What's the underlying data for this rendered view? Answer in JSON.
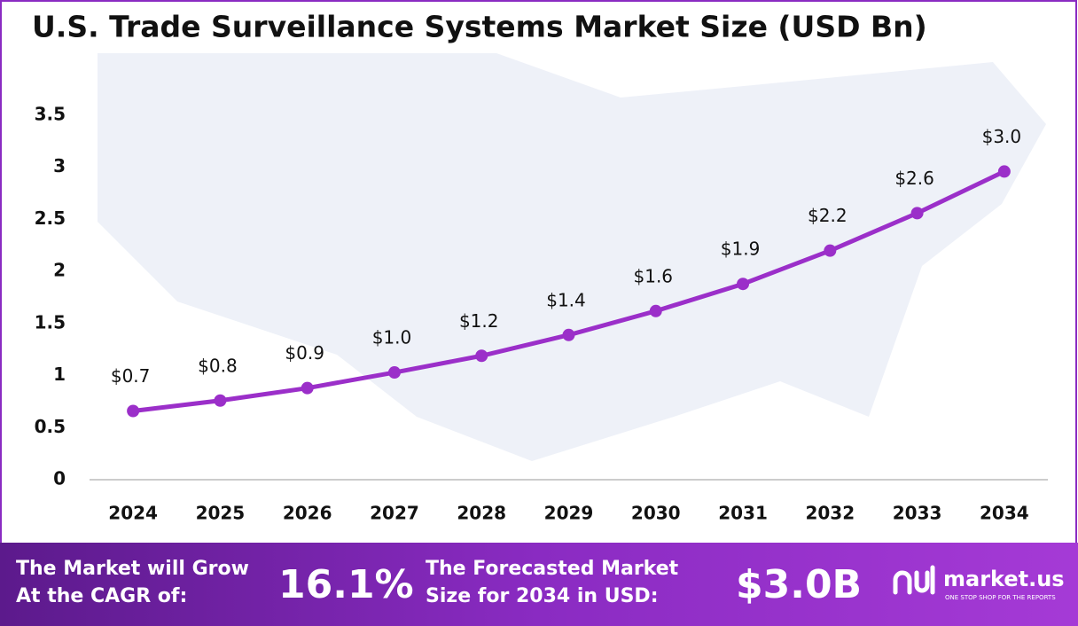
{
  "chart_data": {
    "type": "line",
    "title": "U.S. Trade Surveillance Systems Market Size (USD Bn)",
    "categories": [
      "2024",
      "2025",
      "2026",
      "2027",
      "2028",
      "2029",
      "2030",
      "2031",
      "2032",
      "2033",
      "2034"
    ],
    "series": [
      {
        "name": "Market Size",
        "color": "#9b2fc9",
        "values": [
          0.66,
          0.76,
          0.88,
          1.03,
          1.19,
          1.39,
          1.62,
          1.88,
          2.2,
          2.56,
          2.96
        ],
        "value_labels": [
          "$0.7",
          "$0.8",
          "$0.9",
          "$1.0",
          "$1.2",
          "$1.4",
          "$1.6",
          "$1.9",
          "$2.2",
          "$2.6",
          "$3.0"
        ]
      }
    ],
    "ylim": [
      0,
      3.5
    ],
    "yticks": [
      0,
      0.5,
      1,
      1.5,
      2,
      2.5,
      3,
      3.5
    ],
    "grid": false
  },
  "footer": {
    "cagr_text": [
      "The Market will Grow",
      "At the CAGR of:"
    ],
    "cagr_value": "16.1%",
    "forecast_text": [
      "The Forecasted Market",
      "Size for 2034 in USD:"
    ],
    "forecast_value": "$3.0B",
    "brand": "market.us",
    "tagline": "ONE STOP SHOP FOR THE REPORTS"
  }
}
